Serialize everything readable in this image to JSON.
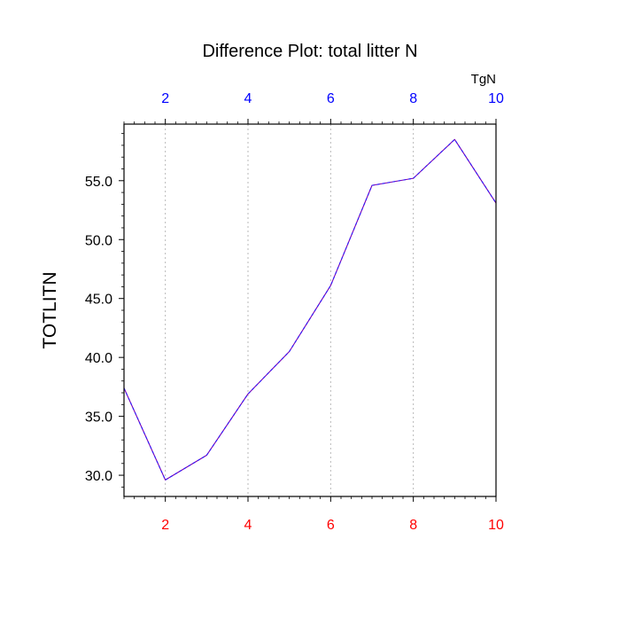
{
  "chart_data": {
    "type": "line",
    "title": "Difference Plot: total litter N",
    "ylabel": "TOTLITN",
    "top_axis_unit": "TgN",
    "x": [
      1,
      2,
      3,
      4,
      5,
      6,
      7,
      8,
      9,
      10
    ],
    "series": [
      {
        "values": [
          37.4,
          29.6,
          31.7,
          36.9,
          40.5,
          46.1,
          54.6,
          55.2,
          58.5,
          53.1
        ],
        "color": "#7b00b0",
        "dash_color": "#2a1aff"
      }
    ],
    "xlim": [
      1,
      10
    ],
    "ylim": [
      28.2,
      59.8
    ],
    "x_ticks": [
      "2",
      "4",
      "6",
      "8",
      "10"
    ],
    "y_ticks": [
      "30.0",
      "35.0",
      "40.0",
      "45.0",
      "50.0",
      "55.0"
    ],
    "bottom_tick_color": "#ff0000",
    "top_tick_color": "#0000ff",
    "grid": "vertical-dotted"
  }
}
